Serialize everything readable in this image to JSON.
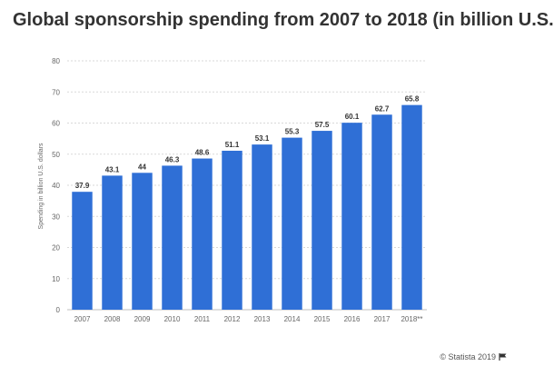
{
  "colors": {
    "bar": "#2f6fd6",
    "grid": "#d9d9d9",
    "text": "#333333"
  },
  "chart_data": {
    "type": "bar",
    "title": "Global sponsorship spending from 2007 to 2018 (in billion U.S.",
    "ylabel": "Spending in billion U.S. dollars",
    "xlabel": "",
    "categories": [
      "2007",
      "2008",
      "2009",
      "2010",
      "2011",
      "2012",
      "2013",
      "2014",
      "2015",
      "2016",
      "2017",
      "2018**"
    ],
    "values": [
      37.9,
      43.1,
      44,
      46.3,
      48.6,
      51.1,
      53.1,
      55.3,
      57.5,
      60.1,
      62.7,
      65.8
    ],
    "value_labels": [
      "37.9",
      "43.1",
      "44",
      "46.3",
      "48.6",
      "51.1",
      "53.1",
      "55.3",
      "57.5",
      "60.1",
      "62.7",
      "65.8"
    ],
    "ylim": [
      0,
      80
    ],
    "yticks": [
      0,
      10,
      20,
      30,
      40,
      50,
      60,
      70,
      80
    ],
    "grid": true
  },
  "credit": {
    "text": "© Statista 2019",
    "icon": "flag-icon"
  }
}
